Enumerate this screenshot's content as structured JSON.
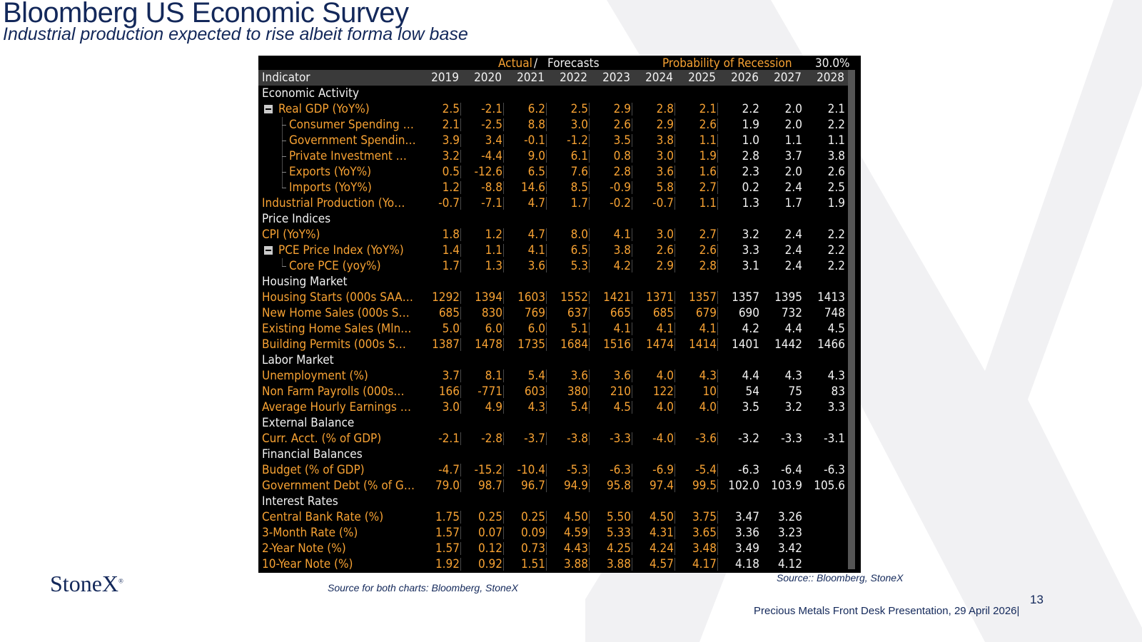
{
  "header": {
    "title": "Bloomberg US Economic Survey",
    "subtitle": "Industrial production expected to rise albeit forma low base"
  },
  "table": {
    "top": {
      "actual": "Actual",
      "separator": "/",
      "forecasts": "Forecasts",
      "probability_label": "Probability of Recession",
      "probability_value": "30.0%"
    },
    "columns": [
      "Indicator",
      "2019",
      "2020",
      "2021",
      "2022",
      "2023",
      "2024",
      "2025",
      "2026",
      "2027",
      "2028"
    ],
    "rows": [
      {
        "section": "Economic Activity"
      },
      {
        "label": "Real GDP (YoY%)",
        "expander": true,
        "values": [
          "2.5",
          "-2.1",
          "6.2",
          "2.5",
          "2.9",
          "2.8",
          "2.1",
          "2.2",
          "2.0",
          "2.1"
        ]
      },
      {
        "label": "Consumer Spending …",
        "child": true,
        "values": [
          "2.1",
          "-2.5",
          "8.8",
          "3.0",
          "2.6",
          "2.9",
          "2.6",
          "1.9",
          "2.0",
          "2.2"
        ]
      },
      {
        "label": "Government Spendin…",
        "child": true,
        "values": [
          "3.9",
          "3.4",
          "-0.1",
          "-1.2",
          "3.5",
          "3.8",
          "1.1",
          "1.0",
          "1.1",
          "1.1"
        ]
      },
      {
        "label": "Private Investment …",
        "child": true,
        "values": [
          "3.2",
          "-4.4",
          "9.0",
          "6.1",
          "0.8",
          "3.0",
          "1.9",
          "2.8",
          "3.7",
          "3.8"
        ]
      },
      {
        "label": "Exports (YoY%)",
        "child": true,
        "values": [
          "0.5",
          "-12.6",
          "6.5",
          "7.6",
          "2.8",
          "3.6",
          "1.6",
          "2.3",
          "2.0",
          "2.6"
        ]
      },
      {
        "label": "Imports (YoY%)",
        "child": true,
        "values": [
          "1.2",
          "-8.8",
          "14.6",
          "8.5",
          "-0.9",
          "5.8",
          "2.7",
          "0.2",
          "2.4",
          "2.5"
        ]
      },
      {
        "label": "Industrial Production (Yo…",
        "values": [
          "-0.7",
          "-7.1",
          "4.7",
          "1.7",
          "-0.2",
          "-0.7",
          "1.1",
          "1.3",
          "1.7",
          "1.9"
        ]
      },
      {
        "section": "Price Indices"
      },
      {
        "label": "CPI (YoY%)",
        "values": [
          "1.8",
          "1.2",
          "4.7",
          "8.0",
          "4.1",
          "3.0",
          "2.7",
          "3.2",
          "2.4",
          "2.2"
        ]
      },
      {
        "label": "PCE Price Index (YoY%)",
        "expander": true,
        "values": [
          "1.4",
          "1.1",
          "4.1",
          "6.5",
          "3.8",
          "2.6",
          "2.6",
          "3.3",
          "2.4",
          "2.2"
        ]
      },
      {
        "label": "Core PCE (yoy%)",
        "child": true,
        "values": [
          "1.7",
          "1.3",
          "3.6",
          "5.3",
          "4.2",
          "2.9",
          "2.8",
          "3.1",
          "2.4",
          "2.2"
        ]
      },
      {
        "section": "Housing Market"
      },
      {
        "label": "Housing Starts (000s SAA…",
        "values": [
          "1292",
          "1394",
          "1603",
          "1552",
          "1421",
          "1371",
          "1357",
          "1357",
          "1395",
          "1413"
        ]
      },
      {
        "label": "New Home Sales (000s S…",
        "values": [
          "685",
          "830",
          "769",
          "637",
          "665",
          "685",
          "679",
          "690",
          "732",
          "748"
        ]
      },
      {
        "label": "Existing Home Sales (Mln…",
        "values": [
          "5.0",
          "6.0",
          "6.0",
          "5.1",
          "4.1",
          "4.1",
          "4.1",
          "4.2",
          "4.4",
          "4.5"
        ]
      },
      {
        "label": "Building Permits (000s S…",
        "values": [
          "1387",
          "1478",
          "1735",
          "1684",
          "1516",
          "1474",
          "1414",
          "1401",
          "1442",
          "1466"
        ]
      },
      {
        "section": "Labor Market"
      },
      {
        "label": "Unemployment (%)",
        "values": [
          "3.7",
          "8.1",
          "5.4",
          "3.6",
          "3.6",
          "4.0",
          "4.3",
          "4.4",
          "4.3",
          "4.3"
        ]
      },
      {
        "label": "Non Farm Payrolls (000s…",
        "values": [
          "166",
          "-771",
          "603",
          "380",
          "210",
          "122",
          "10",
          "54",
          "75",
          "83"
        ]
      },
      {
        "label": "Average Hourly Earnings …",
        "values": [
          "3.0",
          "4.9",
          "4.3",
          "5.4",
          "4.5",
          "4.0",
          "4.0",
          "3.5",
          "3.2",
          "3.3"
        ]
      },
      {
        "section": "External Balance"
      },
      {
        "label": "Curr. Acct. (% of GDP)",
        "values": [
          "-2.1",
          "-2.8",
          "-3.7",
          "-3.8",
          "-3.3",
          "-4.0",
          "-3.6",
          "-3.2",
          "-3.3",
          "-3.1"
        ]
      },
      {
        "section": "Financial Balances"
      },
      {
        "label": "Budget (% of GDP)",
        "values": [
          "-4.7",
          "-15.2",
          "-10.4",
          "-5.3",
          "-6.3",
          "-6.9",
          "-5.4",
          "-6.3",
          "-6.4",
          "-6.3"
        ]
      },
      {
        "label": "Government Debt (% of G…",
        "values": [
          "79.0",
          "98.7",
          "96.7",
          "94.9",
          "95.8",
          "97.4",
          "99.5",
          "102.0",
          "103.9",
          "105.6"
        ]
      },
      {
        "section": "Interest Rates"
      },
      {
        "label": "Central Bank Rate (%)",
        "values": [
          "1.75",
          "0.25",
          "0.25",
          "4.50",
          "5.50",
          "4.50",
          "3.75",
          "3.47",
          "3.26",
          null
        ]
      },
      {
        "label": "3-Month Rate (%)",
        "values": [
          "1.57",
          "0.07",
          "0.09",
          "4.59",
          "5.33",
          "4.31",
          "3.65",
          "3.36",
          "3.23",
          null
        ]
      },
      {
        "label": "2-Year Note (%)",
        "values": [
          "1.57",
          "0.12",
          "0.73",
          "4.43",
          "4.25",
          "4.24",
          "3.48",
          "3.49",
          "3.42",
          null
        ]
      },
      {
        "label": "10-Year Note (%)",
        "values": [
          "1.92",
          "0.92",
          "1.51",
          "3.88",
          "3.88",
          "4.57",
          "4.17",
          "4.18",
          "4.12",
          null
        ]
      }
    ]
  },
  "footer": {
    "logo": "StoneX",
    "logo_mark": "®",
    "source_left": "Source for both charts: Bloomberg, StoneX",
    "source_right": "Source:: Bloomberg, StoneX",
    "page_number": "13",
    "presentation": "Precious Metals Front Desk Presentation, 29 April 2026|"
  }
}
